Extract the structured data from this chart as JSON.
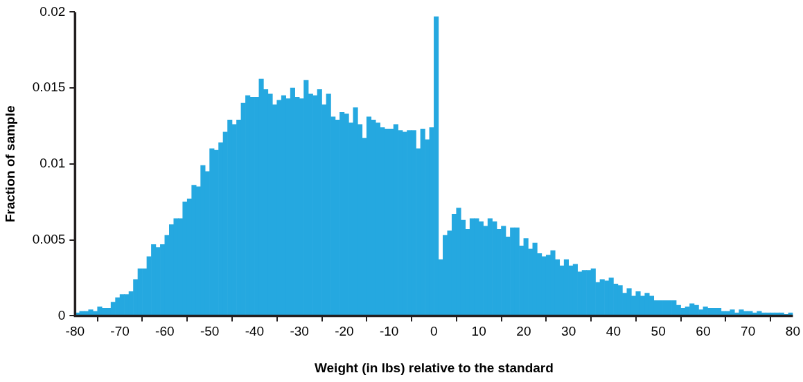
{
  "chart_data": {
    "type": "histogram",
    "xlabel": "Weight (in lbs) relative to the standard",
    "ylabel": "Fraction of sample",
    "color": "#25a8e0",
    "bins": [
      -80,
      -79,
      -78,
      -77,
      -76,
      -75,
      -74,
      -73,
      -72,
      -71,
      -70,
      -69,
      -68,
      -67,
      -66,
      -65,
      -64,
      -63,
      -62,
      -61,
      -60,
      -59,
      -58,
      -57,
      -56,
      -55,
      -54,
      -53,
      -52,
      -51,
      -50,
      -49,
      -48,
      -47,
      -46,
      -45,
      -44,
      -43,
      -42,
      -41,
      -40,
      -39,
      -38,
      -37,
      -36,
      -35,
      -34,
      -33,
      -32,
      -31,
      -30,
      -29,
      -28,
      -27,
      -26,
      -25,
      -24,
      -23,
      -22,
      -21,
      -20,
      -19,
      -18,
      -17,
      -16,
      -15,
      -14,
      -13,
      -12,
      -11,
      -10,
      -9,
      -8,
      -7,
      -6,
      -5,
      -4,
      -3,
      -2,
      -1,
      0,
      1,
      2,
      3,
      4,
      5,
      6,
      7,
      8,
      9,
      10,
      11,
      12,
      13,
      14,
      15,
      16,
      17,
      18,
      19,
      20,
      21,
      22,
      23,
      24,
      25,
      26,
      27,
      28,
      29,
      30,
      31,
      32,
      33,
      34,
      35,
      36,
      37,
      38,
      39,
      40,
      41,
      42,
      43,
      44,
      45,
      46,
      47,
      48,
      49,
      50,
      51,
      52,
      53,
      54,
      55,
      56,
      57,
      58,
      59,
      60,
      61,
      62,
      63,
      64,
      65,
      66,
      67,
      68,
      69,
      70,
      71,
      72,
      73,
      74,
      75,
      76,
      77,
      78,
      79,
      80
    ],
    "values": [
      0.0002,
      0.0003,
      0.0003,
      0.0004,
      0.0003,
      0.0006,
      0.0005,
      0.0005,
      0.0009,
      0.0012,
      0.0014,
      0.0014,
      0.0016,
      0.0024,
      0.0031,
      0.0031,
      0.0039,
      0.0047,
      0.0045,
      0.0047,
      0.0053,
      0.006,
      0.0064,
      0.0064,
      0.0075,
      0.0077,
      0.0086,
      0.0085,
      0.0099,
      0.0095,
      0.011,
      0.0109,
      0.0114,
      0.0121,
      0.0129,
      0.0126,
      0.0129,
      0.014,
      0.0145,
      0.0144,
      0.0144,
      0.0156,
      0.0149,
      0.0146,
      0.0139,
      0.0142,
      0.0145,
      0.0143,
      0.015,
      0.0144,
      0.0143,
      0.0155,
      0.0146,
      0.0145,
      0.0149,
      0.0139,
      0.0146,
      0.0131,
      0.0129,
      0.0134,
      0.0133,
      0.0127,
      0.0137,
      0.0126,
      0.0117,
      0.0131,
      0.0129,
      0.0127,
      0.0124,
      0.0123,
      0.0123,
      0.0126,
      0.0122,
      0.0121,
      0.0122,
      0.0122,
      0.011,
      0.0123,
      0.0116,
      0.0124,
      0.0197,
      0.0037,
      0.0053,
      0.0056,
      0.0067,
      0.0071,
      0.0063,
      0.0057,
      0.0064,
      0.0064,
      0.0062,
      0.0059,
      0.0064,
      0.0062,
      0.0057,
      0.0059,
      0.0052,
      0.0058,
      0.0058,
      0.0046,
      0.0051,
      0.0044,
      0.0048,
      0.0041,
      0.0039,
      0.004,
      0.0043,
      0.0037,
      0.0033,
      0.0037,
      0.0033,
      0.0034,
      0.0029,
      0.003,
      0.003,
      0.0031,
      0.0022,
      0.0024,
      0.0023,
      0.0025,
      0.0021,
      0.002,
      0.0015,
      0.0018,
      0.0013,
      0.0016,
      0.0013,
      0.0015,
      0.0013,
      0.001,
      0.001,
      0.001,
      0.001,
      0.001,
      0.0007,
      0.0005,
      0.0006,
      0.0008,
      0.0007,
      0.0004,
      0.0006,
      0.0005,
      0.0005,
      0.0005,
      0.0003,
      0.0003,
      0.0004,
      0.0002,
      0.0004,
      0.0003,
      0.0003,
      0.0002,
      0.0003,
      0.0002,
      0.0002,
      0.0002,
      0.0002,
      0.0002,
      0.0001,
      0.0002
    ],
    "xlim": [
      -80,
      80
    ],
    "xticks": [
      -80,
      -70,
      -60,
      -50,
      -40,
      -30,
      -20,
      -10,
      0,
      10,
      20,
      30,
      40,
      50,
      60,
      70,
      80
    ],
    "ylim": [
      0,
      0.02
    ],
    "yticks": [
      0,
      0.005,
      0.01,
      0.015,
      0.02
    ]
  }
}
